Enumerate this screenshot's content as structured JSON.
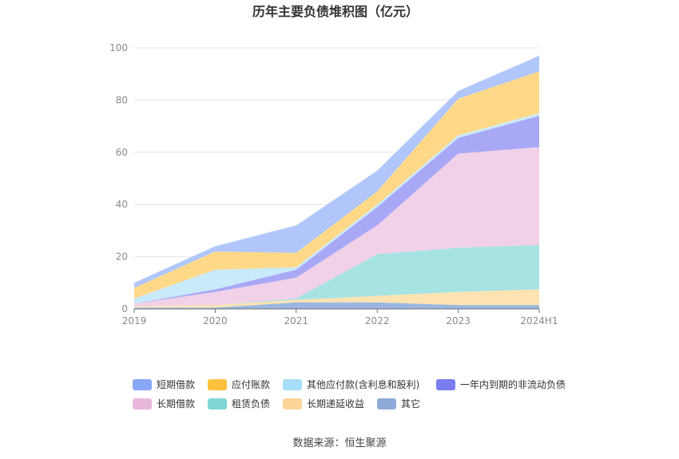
{
  "chart_data": {
    "type": "area",
    "stacked": true,
    "title": "历年主要负债堆积图（亿元）",
    "xlabel": "",
    "ylabel": "",
    "categories": [
      "2019",
      "2020",
      "2021",
      "2022",
      "2023",
      "2024H1"
    ],
    "yticks": [
      "0",
      "20",
      "40",
      "60",
      "80",
      "100"
    ],
    "ylim": [
      0,
      100
    ],
    "grid": true,
    "legend_position": "bottom",
    "series": [
      {
        "name": "其它",
        "color": "#8fb0dc",
        "values": [
          0.5,
          0.5,
          2.5,
          2.5,
          1.5,
          1.5
        ]
      },
      {
        "name": "长期递延收益",
        "color": "#fde0a9",
        "values": [
          0.5,
          1.0,
          1.0,
          2.5,
          5.0,
          6.0
        ]
      },
      {
        "name": "租赁负债",
        "color": "#9fe0e0",
        "values": [
          0.0,
          0.0,
          0.5,
          16.0,
          17.0,
          17.0
        ]
      },
      {
        "name": "长期借款",
        "color": "#f0cce6",
        "values": [
          1.0,
          5.0,
          8.0,
          11.0,
          36.0,
          37.5
        ]
      },
      {
        "name": "一年内到期的非流动负债",
        "color": "#9f9ff5",
        "values": [
          0.0,
          1.0,
          3.0,
          7.0,
          6.0,
          12.0
        ]
      },
      {
        "name": "其他应付款(含利息和股利)",
        "color": "#c3e8fb",
        "values": [
          2.0,
          7.5,
          1.0,
          1.0,
          1.0,
          1.0
        ]
      },
      {
        "name": "应付账款",
        "color": "#ffd57a",
        "values": [
          4.0,
          7.0,
          5.5,
          5.0,
          14.0,
          16.0
        ]
      },
      {
        "name": "短期借款",
        "color": "#a9c1fb",
        "values": [
          2.0,
          2.0,
          10.5,
          8.0,
          3.0,
          6.0
        ]
      }
    ],
    "legend": [
      {
        "name": "短期借款",
        "color": "#8aa6f7"
      },
      {
        "name": "应付账款",
        "color": "#fcc23e"
      },
      {
        "name": "其他应付款(含利息和股利)",
        "color": "#a6dff7"
      },
      {
        "name": "一年内到期的非流动负债",
        "color": "#7a7cf0"
      },
      {
        "name": "长期借款",
        "color": "#e9b7dc"
      },
      {
        "name": "租赁负债",
        "color": "#7fd6d4"
      },
      {
        "name": "长期递延收益",
        "color": "#fdd597"
      },
      {
        "name": "其它",
        "color": "#8eaad8"
      }
    ]
  },
  "source": "数据来源：恒生聚源"
}
